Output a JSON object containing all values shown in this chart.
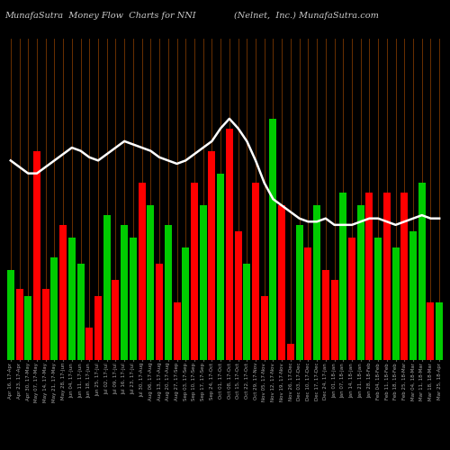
{
  "title_left": "MunafaSutra  Money Flow  Charts for NNI",
  "title_right": "(Nelnet,  Inc.) MunafaSutra.com",
  "background_color": "#000000",
  "bar_grid_color": "#7a3800",
  "bar_colors": [
    "#00cc00",
    "#ff0000",
    "#00cc00",
    "#ff0000",
    "#ff0000",
    "#00cc00",
    "#ff0000",
    "#00cc00",
    "#00cc00",
    "#ff0000",
    "#ff0000",
    "#00cc00",
    "#ff0000",
    "#00cc00",
    "#00cc00",
    "#ff0000",
    "#00cc00",
    "#ff0000",
    "#00cc00",
    "#ff0000",
    "#00cc00",
    "#ff0000",
    "#00cc00",
    "#ff0000",
    "#00cc00",
    "#ff0000",
    "#ff0000",
    "#00cc00",
    "#ff0000",
    "#ff0000",
    "#00cc00",
    "#ff0000",
    "#ff0000",
    "#00cc00",
    "#ff0000",
    "#00cc00",
    "#ff0000",
    "#ff0000",
    "#00cc00",
    "#ff0000",
    "#00cc00",
    "#ff0000",
    "#00cc00",
    "#ff0000",
    "#00cc00",
    "#ff0000",
    "#00cc00",
    "#00cc00",
    "#ff0000",
    "#00cc00"
  ],
  "bar_values": [
    28,
    22,
    20,
    65,
    22,
    32,
    42,
    38,
    30,
    10,
    20,
    45,
    25,
    42,
    38,
    55,
    48,
    30,
    42,
    18,
    35,
    55,
    48,
    65,
    58,
    72,
    40,
    30,
    55,
    20,
    75,
    48,
    5,
    42,
    35,
    48,
    28,
    25,
    52,
    38,
    48,
    52,
    38,
    52,
    35,
    52,
    40,
    55,
    18,
    18
  ],
  "line_values": [
    62,
    60,
    58,
    58,
    60,
    62,
    64,
    66,
    65,
    63,
    62,
    64,
    66,
    68,
    67,
    66,
    65,
    63,
    62,
    61,
    62,
    64,
    66,
    68,
    72,
    75,
    72,
    68,
    62,
    55,
    50,
    48,
    46,
    44,
    43,
    43,
    44,
    42,
    42,
    42,
    43,
    44,
    44,
    43,
    42,
    43,
    44,
    45,
    44,
    44
  ],
  "line_color": "#ffffff",
  "line_width": 1.8,
  "ylim": [
    0,
    100
  ],
  "title_fontsize": 7,
  "tick_fontsize": 4.0,
  "title_color": "#cccccc",
  "tick_color": "#aaaaaa",
  "x_labels": [
    "Apr 16, 17-Apr",
    "Apr 23, 17-Apr",
    "Apr 30, 17-May",
    "May 07, 17-May",
    "May 14, 17-May",
    "May 21, 17-May",
    "May 28, 17-Jun",
    "Jun 04, 17-Jun",
    "Jun 11, 17-Jun",
    "Jun 18, 17-Jun",
    "Jun 25, 17-Jul",
    "Jul 02, 17-Jul",
    "Jul 09, 17-Jul",
    "Jul 16, 17-Jul",
    "Jul 23, 17-Jul",
    "Jul 30, 17-Aug",
    "Aug 06, 17-Aug",
    "Aug 13, 17-Aug",
    "Aug 20, 17-Aug",
    "Aug 27, 17-Sep",
    "Sep 03, 17-Sep",
    "Sep 10, 17-Sep",
    "Sep 17, 17-Sep",
    "Sep 24, 17-Oct",
    "Oct 01, 17-Oct",
    "Oct 08, 17-Oct",
    "Oct 15, 17-Oct",
    "Oct 22, 17-Oct",
    "Oct 29, 17-Nov",
    "Nov 05, 17-Nov",
    "Nov 12, 17-Nov",
    "Nov 19, 17-Nov",
    "Nov 26, 17-Dec",
    "Dec 03, 17-Dec",
    "Dec 10, 17-Dec",
    "Dec 17, 17-Dec",
    "Dec 24, 17-Jan",
    "Jan 01, 18-Jan",
    "Jan 07, 18-Jan",
    "Jan 14, 18-Jan",
    "Jan 21, 18-Jan",
    "Jan 28, 18-Feb",
    "Feb 04, 18-Feb",
    "Feb 11, 18-Feb",
    "Feb 18, 18-Feb",
    "Feb 25, 18-Mar",
    "Mar 04, 18-Mar",
    "Mar 11, 18-Mar",
    "Mar 18, 18-Mar",
    "Mar 25, 18-Apr"
  ]
}
